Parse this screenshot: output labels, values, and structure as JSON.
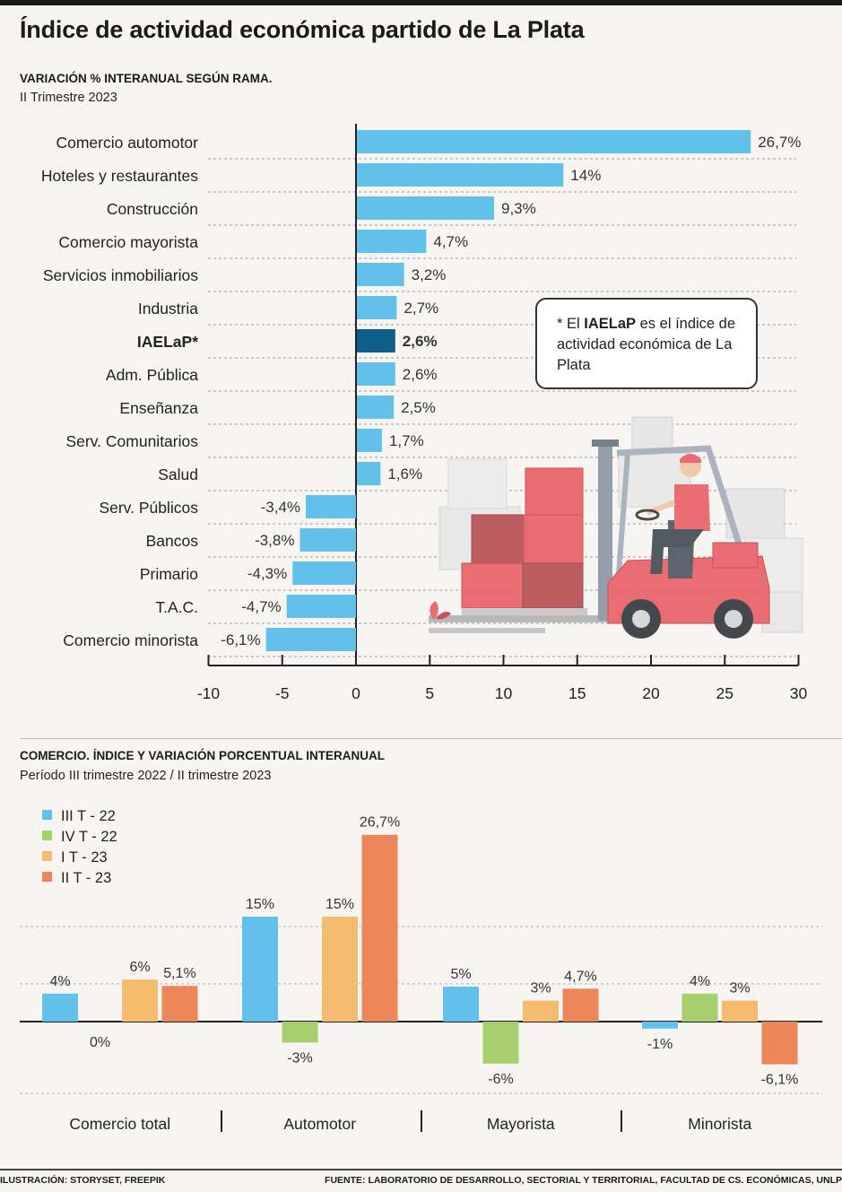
{
  "header": {
    "title": "Índice de actividad económica partido de La Plata"
  },
  "chart1": {
    "subtitle": "VARIACIÓN % INTERANUAL SEGÚN RAMA.",
    "period": "II Trimestre 2023"
  },
  "note": {
    "prefix": "* El ",
    "bold": "IAELaP",
    "suffix": " es el índice de actividad económica de La Plata"
  },
  "chart2": {
    "subtitle": "COMERCIO. ÍNDICE Y VARIACIÓN PORCENTUAL INTERANUAL",
    "period": "Período III trimestre 2022 / II trimestre 2023"
  },
  "footer": {
    "illustration_label": "ILUSTRACIÓN:",
    "illustration_value": "STORYSET, FREEPIK",
    "source_label": "FUENTE:",
    "source_value": "LABORATORIO DE DESARROLLO, SECTORIAL Y TERRITORIAL, FACULTAD DE CS. ECONÓMICAS, UNLP"
  },
  "colors": {
    "bar_blue": "#62c1ea",
    "bar_highlight": "#0d5e88",
    "series": [
      "#62c1ea",
      "#a8cf6e",
      "#f4bb6e",
      "#ec8659"
    ]
  },
  "chart_data": [
    {
      "type": "bar",
      "orientation": "horizontal",
      "title": "VARIACIÓN % INTERANUAL SEGÚN RAMA.",
      "categories": [
        "Comercio automotor",
        "Hoteles y restaurantes",
        "Construcción",
        "Comercio mayorista",
        "Servicios inmobiliarios",
        "Industria",
        "IAELaP*",
        "Adm. Pública",
        "Enseñanza",
        "Serv. Comunitarios",
        "Salud",
        "Serv. Públicos",
        "Bancos",
        "Primario",
        "T.A.C.",
        "Comercio minorista"
      ],
      "values": [
        26.7,
        14,
        9.3,
        4.7,
        3.2,
        2.7,
        2.6,
        2.6,
        2.5,
        1.7,
        1.6,
        -3.4,
        -3.8,
        -4.3,
        -4.7,
        -6.1
      ],
      "labels": [
        "26,7%",
        "14%",
        "9,3%",
        "4,7%",
        "3,2%",
        "2,7%",
        "2,6%",
        "2,6%",
        "2,5%",
        "1,7%",
        "1,6%",
        "-3,4%",
        "-3,8%",
        "-4,3%",
        "-4,7%",
        "-6,1%"
      ],
      "highlight": "IAELaP*",
      "xlim": [
        -10,
        30
      ],
      "xticks": [
        -10,
        -5,
        0,
        5,
        10,
        15,
        20,
        25,
        30
      ],
      "xlabel": "",
      "ylabel": ""
    },
    {
      "type": "bar",
      "orientation": "vertical",
      "title": "COMERCIO. ÍNDICE Y VARIACIÓN PORCENTUAL INTERANUAL",
      "categories": [
        "Comercio total",
        "Automotor",
        "Mayorista",
        "Minorista"
      ],
      "series": [
        {
          "name": "III T - 22",
          "values": [
            4,
            15,
            5,
            -1
          ],
          "labels": [
            "4%",
            "15%",
            "5%",
            "-1%"
          ]
        },
        {
          "name": "IV T - 22",
          "values": [
            0,
            -3,
            -6,
            4
          ],
          "labels": [
            "0%",
            "-3%",
            "-6%",
            "4%"
          ]
        },
        {
          "name": "I T - 23",
          "values": [
            6,
            15,
            3,
            3
          ],
          "labels": [
            "6%",
            "15%",
            "3%",
            "3%"
          ]
        },
        {
          "name": "II T - 23",
          "values": [
            5.1,
            26.7,
            4.7,
            -6.1
          ],
          "labels": [
            "5,1%",
            "26,7%",
            "4,7%",
            "-6,1%"
          ]
        }
      ],
      "ylim": [
        -8,
        30
      ],
      "legend": "top-left",
      "grid": true
    }
  ]
}
